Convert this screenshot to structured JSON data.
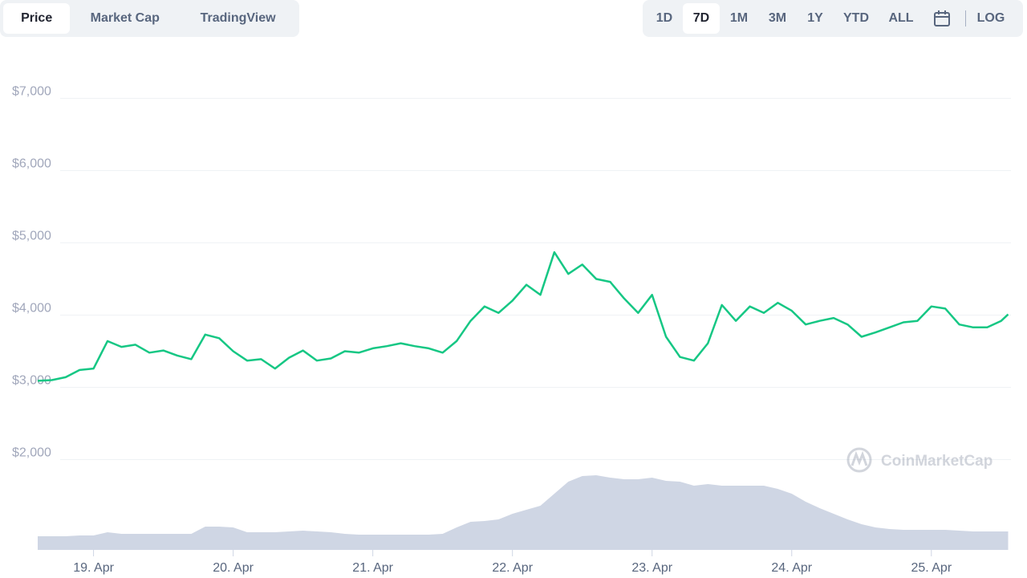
{
  "tabs": [
    "Price",
    "Market Cap",
    "TradingView"
  ],
  "ranges": [
    "1D",
    "7D",
    "1M",
    "3M",
    "1Y",
    "YTD",
    "ALL"
  ],
  "log_label": "LOG",
  "watermark": "CoinMarketCap",
  "chart_data": {
    "type": "line",
    "x": [
      18.6,
      18.7,
      18.8,
      18.9,
      19.0,
      19.1,
      19.2,
      19.3,
      19.4,
      19.5,
      19.6,
      19.7,
      19.8,
      19.9,
      20.0,
      20.1,
      20.2,
      20.3,
      20.4,
      20.5,
      20.6,
      20.7,
      20.8,
      20.9,
      21.0,
      21.1,
      21.2,
      21.3,
      21.4,
      21.5,
      21.6,
      21.7,
      21.8,
      21.9,
      22.0,
      22.1,
      22.2,
      22.3,
      22.4,
      22.5,
      22.6,
      22.7,
      22.8,
      22.9,
      23.0,
      23.1,
      23.2,
      23.3,
      23.4,
      23.5,
      23.6,
      23.7,
      23.8,
      23.9,
      24.0,
      24.1,
      24.2,
      24.3,
      24.4,
      24.5,
      24.6,
      24.7,
      24.8,
      24.9,
      25.0,
      25.1,
      25.2,
      25.3,
      25.4,
      25.5,
      25.55
    ],
    "series": [
      {
        "color": "#16c784",
        "values": [
          3090,
          3100,
          3140,
          3240,
          3260,
          3640,
          3560,
          3590,
          3480,
          3510,
          3440,
          3390,
          3730,
          3680,
          3500,
          3370,
          3390,
          3260,
          3410,
          3510,
          3370,
          3400,
          3500,
          3480,
          3540,
          3570,
          3610,
          3570,
          3540,
          3480,
          3640,
          3920,
          4120,
          4030,
          4200,
          4420,
          4280,
          4870,
          4570,
          4700,
          4500,
          4460,
          4230,
          4030,
          4280,
          3700,
          3420,
          3370,
          3610,
          4140,
          3920,
          4120,
          4030,
          4170,
          4060,
          3870,
          3920,
          3960,
          3870,
          3700,
          3760,
          3830,
          3900,
          3920,
          4120,
          4090,
          3870,
          3830,
          3830,
          3920,
          4010
        ]
      },
      {
        "color": "#cfd6e4",
        "axis": "y2",
        "values": [
          17,
          17,
          17,
          18,
          18,
          22,
          20,
          20,
          20,
          20,
          20,
          20,
          29,
          29,
          28,
          22,
          22,
          22,
          23,
          24,
          23,
          22,
          20,
          19,
          19,
          19,
          19,
          19,
          19,
          20,
          28,
          35,
          36,
          38,
          45,
          50,
          55,
          70,
          85,
          92,
          93,
          90,
          88,
          88,
          90,
          86,
          85,
          80,
          82,
          80,
          80,
          80,
          80,
          76,
          70,
          60,
          52,
          45,
          38,
          32,
          28,
          26,
          25,
          25,
          25,
          25,
          24,
          23,
          23,
          23,
          23
        ]
      }
    ],
    "xlim": [
      18.56,
      25.57
    ],
    "xticks": [
      {
        "value": 19,
        "label": "19. Apr"
      },
      {
        "value": 20,
        "label": "20. Apr"
      },
      {
        "value": 21,
        "label": "21. Apr"
      },
      {
        "value": 22,
        "label": "22. Apr"
      },
      {
        "value": 23,
        "label": "23. Apr"
      },
      {
        "value": 24,
        "label": "24. Apr"
      },
      {
        "value": 25,
        "label": "25. Apr"
      }
    ],
    "ylim": [
      750,
      7250
    ],
    "yticks": [
      {
        "value": 2000,
        "label": "$2,000"
      },
      {
        "value": 3000,
        "label": "$3,000"
      },
      {
        "value": 4000,
        "label": "$4,000"
      },
      {
        "value": 5000,
        "label": "$5,000"
      },
      {
        "value": 6000,
        "label": "$6,000"
      },
      {
        "value": 7000,
        "label": "$7,000"
      }
    ],
    "y2lim": [
      0,
      585
    ],
    "grid": true
  }
}
